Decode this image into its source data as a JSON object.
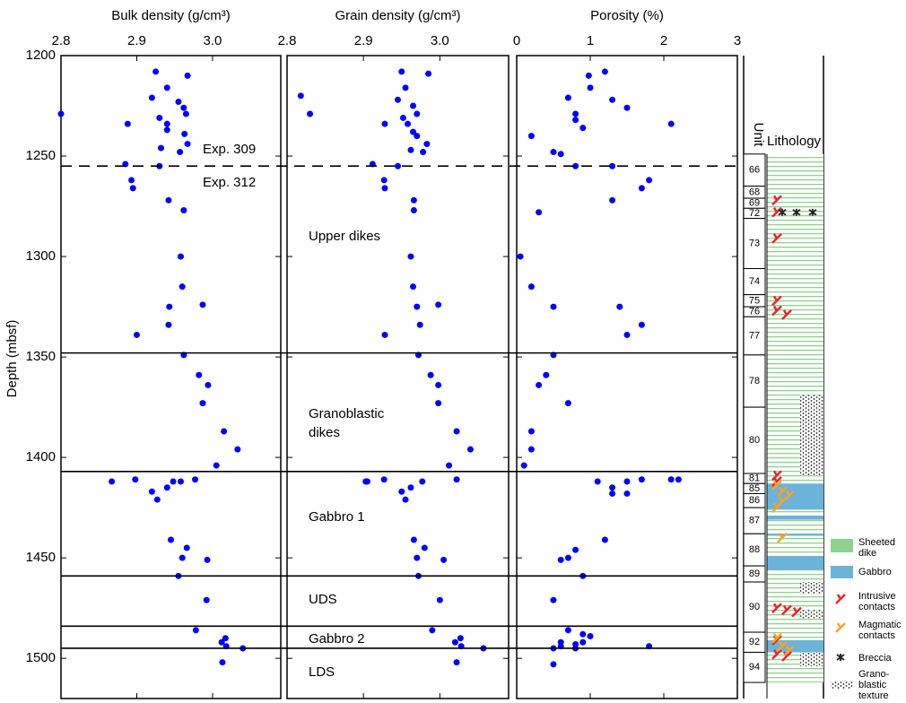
{
  "chart_data": [
    {
      "type": "scatter",
      "xlabel": "Bulk density (g/cm³)",
      "ylabel": "Depth (mbsf)",
      "color": "#0000ff",
      "xlim": [
        2.8,
        3.09
      ],
      "xticks": [
        2.8,
        2.9,
        {
          "value": 3,
          "label": "3.0"
        }
      ],
      "ylim": [
        1200,
        1520
      ],
      "yticks": [
        1200,
        1250,
        1300,
        1350,
        1400,
        1450,
        1500
      ],
      "y": [
        1208,
        1210,
        1216,
        1221,
        1223,
        1226,
        1229,
        1229,
        1231,
        1234,
        1234,
        1237,
        1239,
        1244,
        1248,
        1246,
        1254,
        1255,
        1262,
        1266,
        1272,
        1277,
        1300,
        1315,
        1325,
        1324,
        1334,
        1339,
        1349,
        1359,
        1364,
        1373,
        1387,
        1396,
        1404,
        1412,
        1411,
        1417,
        1421,
        1412,
        1412,
        1411,
        1415,
        1441,
        1445,
        1450,
        1451,
        1459,
        1471,
        1486,
        1492,
        1490,
        1494,
        1495,
        1502
      ],
      "x": [
        2.925,
        2.967,
        2.94,
        2.92,
        2.955,
        2.962,
        2.8,
        2.965,
        2.93,
        2.888,
        2.94,
        2.94,
        2.963,
        2.967,
        2.957,
        2.932,
        2.885,
        2.93,
        2.893,
        2.895,
        2.942,
        2.962,
        2.958,
        2.96,
        2.943,
        2.987,
        2.942,
        2.9,
        2.962,
        2.982,
        2.994,
        2.987,
        3.015,
        3.033,
        3.005,
        2.867,
        2.898,
        2.92,
        2.927,
        2.948,
        2.958,
        2.977,
        2.94,
        2.945,
        2.966,
        2.96,
        2.993,
        2.955,
        2.992,
        2.978,
        3.012,
        3.017,
        3.018,
        3.04,
        3.013
      ]
    },
    {
      "type": "scatter",
      "xlabel": "Grain density (g/cm³)",
      "color": "#0000ff",
      "xlim": [
        2.8,
        3.09
      ],
      "xticks": [
        2.8,
        2.9,
        {
          "value": 3,
          "label": "3.0"
        }
      ],
      "y": [
        1208,
        1209,
        1216,
        1220,
        1222,
        1225,
        1229,
        1229,
        1231,
        1234,
        1234,
        1238,
        1240,
        1244,
        1247,
        1248,
        1254,
        1255,
        1262,
        1266,
        1272,
        1277,
        1300,
        1315,
        1325,
        1324,
        1334,
        1339,
        1349,
        1359,
        1364,
        1373,
        1387,
        1396,
        1404,
        1412,
        1412,
        1411,
        1417,
        1421,
        1415,
        1412,
        1411,
        1441,
        1445,
        1450,
        1451,
        1459,
        1471,
        1486,
        1492,
        1490,
        1494,
        1495,
        1502
      ],
      "x": [
        2.95,
        2.985,
        2.955,
        2.818,
        2.945,
        2.965,
        2.83,
        2.97,
        2.952,
        2.928,
        2.958,
        2.965,
        2.97,
        2.983,
        2.962,
        2.978,
        2.912,
        2.945,
        2.927,
        2.928,
        2.966,
        2.966,
        2.962,
        2.965,
        2.97,
        2.998,
        2.974,
        2.928,
        2.972,
        2.988,
        2.998,
        2.998,
        3.022,
        3.04,
        3.012,
        2.905,
        2.903,
        2.927,
        2.95,
        2.955,
        2.962,
        2.977,
        3.022,
        2.966,
        2.98,
        2.97,
        3.005,
        2.972,
        3,
        2.99,
        3.02,
        3.027,
        3.028,
        3.057,
        3.022
      ]
    },
    {
      "type": "scatter",
      "xlabel": "Porosity (%)",
      "color": "#0000ff",
      "xlim": [
        0,
        3
      ],
      "xticks": [
        0,
        1,
        2,
        3
      ],
      "y": [
        1208,
        1210,
        1216,
        1221,
        1222,
        1226,
        1229,
        1232,
        1234,
        1236,
        1240,
        1248,
        1249,
        1255,
        1255,
        1262,
        1266,
        1272,
        1278,
        1300,
        1315,
        1325,
        1325,
        1334,
        1339,
        1349,
        1359,
        1364,
        1373,
        1387,
        1396,
        1404,
        1412,
        1415,
        1412,
        1411,
        1411,
        1411,
        1418,
        1418,
        1441,
        1446,
        1450,
        1451,
        1459,
        1471,
        1486,
        1488,
        1489,
        1492,
        1492,
        1493,
        1494,
        1495,
        1494,
        1495,
        1503
      ],
      "x": [
        1.2,
        0.98,
        1,
        0.7,
        1.3,
        1.5,
        0.8,
        0.8,
        2.1,
        0.9,
        0.2,
        0.5,
        0.6,
        0.8,
        1.3,
        1.8,
        1.7,
        1.3,
        0.3,
        0.05,
        0.2,
        0.5,
        1.4,
        1.7,
        1.5,
        0.5,
        0.4,
        0.3,
        0.7,
        0.2,
        0.2,
        0.1,
        1.1,
        1.3,
        1.5,
        1.7,
        2.1,
        2.2,
        1.3,
        1.5,
        1.2,
        0.8,
        0.7,
        0.6,
        0.9,
        0.5,
        0.7,
        0.9,
        1,
        0.6,
        0.9,
        0.8,
        1.8,
        0.5,
        0.6,
        0.8,
        0.5
      ]
    }
  ],
  "boundaries": {
    "solid": [
      1348,
      1407,
      1459,
      1484,
      1495
    ],
    "dashed": [
      1255
    ]
  },
  "annotations": [
    "Exp. 309",
    "Exp. 312",
    "Upper dikes",
    "Granoblastic dikes",
    "Gabbro 1",
    "UDS",
    "Gabbro 2",
    "LDS"
  ],
  "lithology": {
    "unit_header": "Unit",
    "header": "Lithology",
    "units": [
      {
        "label": "66",
        "top": 1249,
        "bottom": 1265
      },
      {
        "label": "68",
        "top": 1265,
        "bottom": 1271
      },
      {
        "label": "69",
        "top": 1271,
        "bottom": 1276
      },
      {
        "label": "72",
        "top": 1276,
        "bottom": 1281
      },
      {
        "label": "73",
        "top": 1281,
        "bottom": 1306
      },
      {
        "label": "74",
        "top": 1306,
        "bottom": 1319
      },
      {
        "label": "75",
        "top": 1319,
        "bottom": 1325
      },
      {
        "label": "76",
        "top": 1325,
        "bottom": 1330
      },
      {
        "label": "77",
        "top": 1330,
        "bottom": 1349
      },
      {
        "label": "78",
        "top": 1349,
        "bottom": 1375
      },
      {
        "label": "80",
        "top": 1375,
        "bottom": 1408
      },
      {
        "label": "81",
        "top": 1408,
        "bottom": 1413
      },
      {
        "label": "85",
        "top": 1413,
        "bottom": 1418
      },
      {
        "label": "86",
        "top": 1418,
        "bottom": 1425
      },
      {
        "label": "87",
        "top": 1425,
        "bottom": 1438
      },
      {
        "label": "88",
        "top": 1438,
        "bottom": 1454
      },
      {
        "label": "89",
        "top": 1454,
        "bottom": 1462
      },
      {
        "label": "90",
        "top": 1462,
        "bottom": 1487
      },
      {
        "label": "92",
        "top": 1487,
        "bottom": 1497
      },
      {
        "label": "94",
        "top": 1497,
        "bottom": 1512
      }
    ],
    "gabbro": [
      [
        1413,
        1426
      ],
      [
        1429,
        1431
      ],
      [
        1438,
        1439
      ],
      [
        1449,
        1456
      ],
      [
        1491,
        1497
      ]
    ],
    "granoblastic": [
      [
        1369,
        1409
      ],
      [
        1462,
        1468
      ],
      [
        1476,
        1480
      ],
      [
        1497,
        1504
      ]
    ],
    "intrusive": [
      1272,
      1278,
      1291,
      1322,
      1327,
      1329,
      1409,
      1412,
      1475,
      1476,
      1477,
      1491,
      1498,
      1499
    ],
    "magmatic": [
      1414,
      1417,
      1419,
      1422,
      1425,
      1440,
      1490,
      1494,
      1496
    ],
    "breccia": [
      1278
    ],
    "legend": [
      "Sheeted dike",
      "Gabbro",
      "Intrusive contacts",
      "Magmatic contacts",
      "Breccia",
      "Grano-blastic texture"
    ]
  }
}
